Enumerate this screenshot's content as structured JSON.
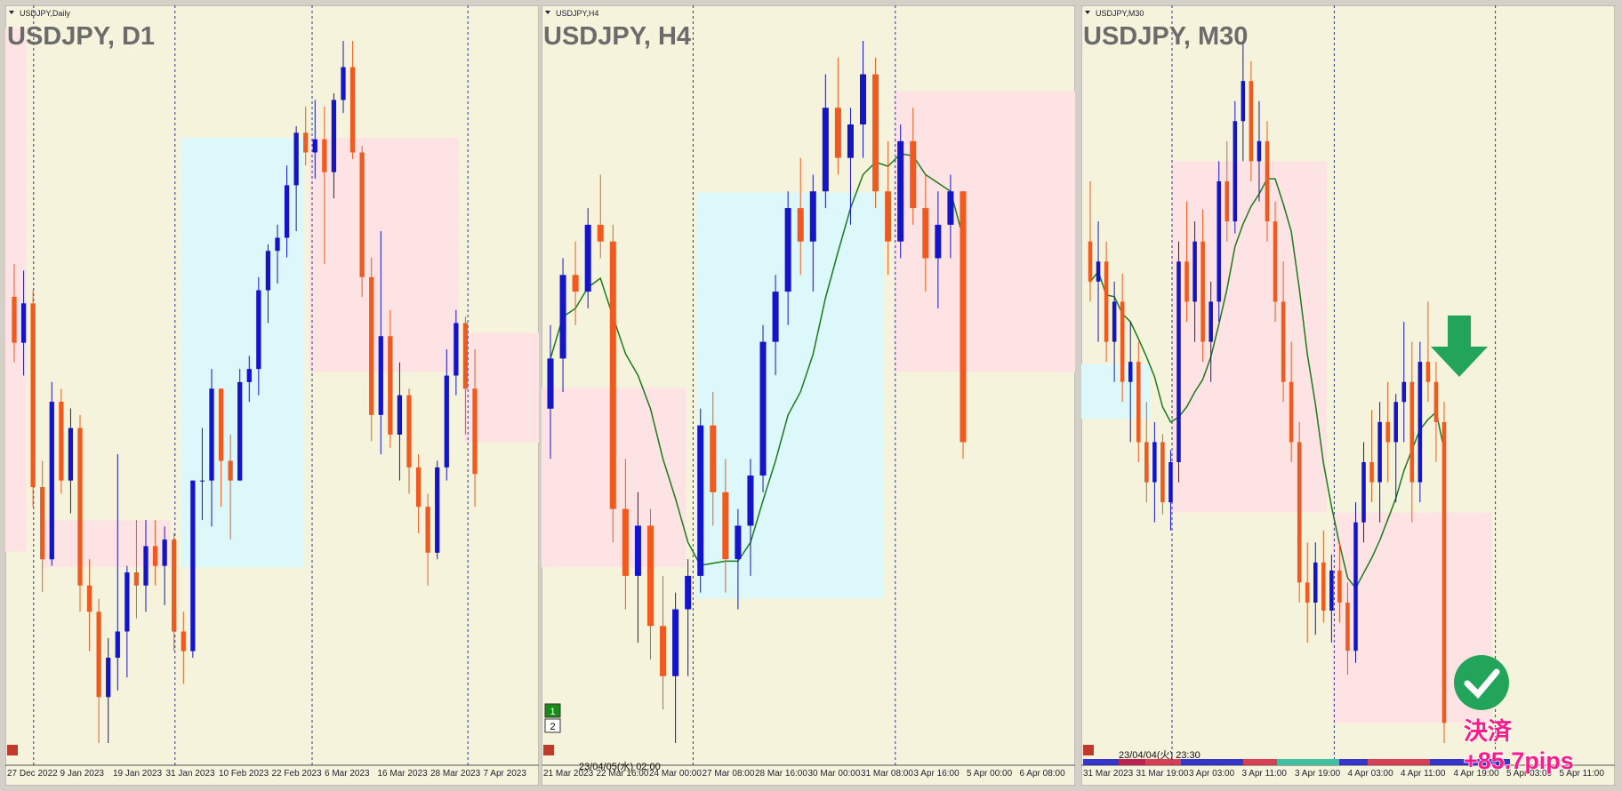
{
  "chart_data": [
    {
      "type": "candlestick",
      "header": "USDJPY,Daily",
      "title": "USDJPY, D1",
      "up_color": "#1414c8",
      "down_color": "#f05a1e",
      "moving_average": false,
      "x_labels": [
        "27 Dec 2022",
        "9 Jan 2023",
        "19 Jan 2023",
        "31 Jan 2023",
        "10 Feb 2023",
        "22 Feb 2023",
        "6 Mar 2023",
        "16 Mar 2023",
        "28 Mar 2023",
        "7 Apr 2023"
      ],
      "candles": [
        [
          134.0,
          134.5,
          133.0,
          133.3
        ],
        [
          133.3,
          134.4,
          132.8,
          133.9
        ],
        [
          133.9,
          134.1,
          130.8,
          131.1
        ],
        [
          131.1,
          131.5,
          129.5,
          130.0
        ],
        [
          130.0,
          132.7,
          129.9,
          132.4
        ],
        [
          132.4,
          132.6,
          131.0,
          131.2
        ],
        [
          131.2,
          132.3,
          130.7,
          132.0
        ],
        [
          132.0,
          132.2,
          129.2,
          129.6
        ],
        [
          129.6,
          130.0,
          128.6,
          129.2
        ],
        [
          129.2,
          129.4,
          127.2,
          127.9
        ],
        [
          127.9,
          128.8,
          127.2,
          128.5
        ],
        [
          128.5,
          131.6,
          128.0,
          128.9
        ],
        [
          128.9,
          129.9,
          128.2,
          129.8
        ],
        [
          129.8,
          130.6,
          129.1,
          129.6
        ],
        [
          129.6,
          130.6,
          129.2,
          130.2
        ],
        [
          130.2,
          130.6,
          129.6,
          129.9
        ],
        [
          129.9,
          130.5,
          129.3,
          130.3
        ],
        [
          130.3,
          130.4,
          128.6,
          128.9
        ],
        [
          128.9,
          129.2,
          128.1,
          128.6
        ],
        [
          128.6,
          131.2,
          128.5,
          131.2
        ],
        [
          131.2,
          132.0,
          130.6,
          131.2
        ],
        [
          131.2,
          132.9,
          130.5,
          132.6
        ],
        [
          132.6,
          132.6,
          130.8,
          131.5
        ],
        [
          131.5,
          131.9,
          130.3,
          131.2
        ],
        [
          131.2,
          132.9,
          131.2,
          132.7
        ],
        [
          132.7,
          133.1,
          132.4,
          132.9
        ],
        [
          132.9,
          134.3,
          132.5,
          134.1
        ],
        [
          134.1,
          134.8,
          133.6,
          134.7
        ],
        [
          134.7,
          135.1,
          134.2,
          134.9
        ],
        [
          134.9,
          136.0,
          134.6,
          135.7
        ],
        [
          135.7,
          136.6,
          135.0,
          136.5
        ],
        [
          136.5,
          136.9,
          136.0,
          136.2
        ],
        [
          136.2,
          137.0,
          135.8,
          136.4
        ],
        [
          136.4,
          136.9,
          134.5,
          135.9
        ],
        [
          135.9,
          137.1,
          135.5,
          137.0
        ],
        [
          137.0,
          137.9,
          136.8,
          137.5
        ],
        [
          137.5,
          137.9,
          136.1,
          136.2
        ],
        [
          136.2,
          136.3,
          134.0,
          134.3
        ],
        [
          134.3,
          134.6,
          131.8,
          132.2
        ],
        [
          132.2,
          135.0,
          131.6,
          133.4
        ],
        [
          133.4,
          133.8,
          131.7,
          131.9
        ],
        [
          131.9,
          133.0,
          131.2,
          132.5
        ],
        [
          132.5,
          132.6,
          131.0,
          131.4
        ],
        [
          131.4,
          131.6,
          130.4,
          130.8
        ],
        [
          130.8,
          131.0,
          129.6,
          130.1
        ],
        [
          130.1,
          131.5,
          130.0,
          131.4
        ],
        [
          131.4,
          133.2,
          131.2,
          132.8
        ],
        [
          132.8,
          133.8,
          132.5,
          133.6
        ],
        [
          133.6,
          133.7,
          131.9,
          132.6
        ],
        [
          132.6,
          133.2,
          130.8,
          131.3
        ]
      ]
    },
    {
      "type": "candlestick",
      "header": "USDJPY,H4",
      "title": "USDJPY, H4",
      "up_color": "#1414c8",
      "down_color": "#f05a1e",
      "moving_average": true,
      "ma_color": "#1a7a1a",
      "timestamp": "23/04/05(水) 02:00",
      "buttons": [
        "1",
        "2"
      ],
      "x_labels": [
        "21 Mar 2023",
        "22 Mar 16:00",
        "24 Mar 00:00",
        "27 Mar 08:00",
        "28 Mar 16:00",
        "30 Mar 00:00",
        "31 Mar 08:00",
        "3 Apr 16:00",
        "5 Apr 00:00",
        "6 Apr 08:00"
      ],
      "candles": [
        [
          131.6,
          132.1,
          131.3,
          131.9
        ],
        [
          131.9,
          132.5,
          131.7,
          132.4
        ],
        [
          132.4,
          132.6,
          132.1,
          132.3
        ],
        [
          132.3,
          132.8,
          132.2,
          132.7
        ],
        [
          132.7,
          133.0,
          132.5,
          132.6
        ],
        [
          132.6,
          132.7,
          130.8,
          131.0
        ],
        [
          131.0,
          131.3,
          130.4,
          130.6
        ],
        [
          130.6,
          131.1,
          130.2,
          130.9
        ],
        [
          130.9,
          131.0,
          130.1,
          130.3
        ],
        [
          130.3,
          130.6,
          129.8,
          130.0
        ],
        [
          130.0,
          130.5,
          129.6,
          130.4
        ],
        [
          130.4,
          130.7,
          130.0,
          130.6
        ],
        [
          130.6,
          131.6,
          130.5,
          131.5
        ],
        [
          131.5,
          131.7,
          130.9,
          131.1
        ],
        [
          131.1,
          131.3,
          130.5,
          130.7
        ],
        [
          130.7,
          131.0,
          130.4,
          130.9
        ],
        [
          130.9,
          131.3,
          130.6,
          131.2
        ],
        [
          131.2,
          132.1,
          131.1,
          132.0
        ],
        [
          132.0,
          132.4,
          131.8,
          132.3
        ],
        [
          132.3,
          132.9,
          132.1,
          132.8
        ],
        [
          132.8,
          133.1,
          132.4,
          132.6
        ],
        [
          132.6,
          133.0,
          132.3,
          132.9
        ],
        [
          132.9,
          133.6,
          132.8,
          133.4
        ],
        [
          133.4,
          133.7,
          133.0,
          133.1
        ],
        [
          133.1,
          133.4,
          132.7,
          133.3
        ],
        [
          133.3,
          133.8,
          133.1,
          133.6
        ],
        [
          133.6,
          133.7,
          132.8,
          132.9
        ],
        [
          132.9,
          133.2,
          132.4,
          132.6
        ],
        [
          132.6,
          133.3,
          132.5,
          133.2
        ],
        [
          133.2,
          133.4,
          132.7,
          132.8
        ],
        [
          132.8,
          133.0,
          132.3,
          132.5
        ],
        [
          132.5,
          132.9,
          132.2,
          132.7
        ],
        [
          132.7,
          133.0,
          132.5,
          132.9
        ],
        [
          132.9,
          132.9,
          131.3,
          131.4
        ]
      ]
    },
    {
      "type": "candlestick",
      "header": "USDJPY,M30",
      "title": "USDJPY, M30",
      "up_color": "#1414c8",
      "down_color": "#f05a1e",
      "moving_average": true,
      "ma_color": "#1a7a1a",
      "timestamp": "23/04/04(火) 23:30",
      "annotations": [
        "決済",
        "+85.7pips"
      ],
      "x_labels": [
        "31 Mar 2023",
        "31 Mar 19:00",
        "3 Apr 03:00",
        "3 Apr 11:00",
        "3 Apr 19:00",
        "4 Apr 03:00",
        "4 Apr 11:00",
        "4 Apr 19:00",
        "5 Apr 03:00",
        "5 Apr 11:00"
      ],
      "candles": [
        [
          132.7,
          132.85,
          132.55,
          132.6
        ],
        [
          132.6,
          132.75,
          132.45,
          132.65
        ],
        [
          132.65,
          132.7,
          132.4,
          132.45
        ],
        [
          132.45,
          132.6,
          132.35,
          132.55
        ],
        [
          132.55,
          132.62,
          132.3,
          132.35
        ],
        [
          132.35,
          132.5,
          132.2,
          132.4
        ],
        [
          132.4,
          132.45,
          132.15,
          132.2
        ],
        [
          132.2,
          132.3,
          132.05,
          132.1
        ],
        [
          132.1,
          132.25,
          132.0,
          132.2
        ],
        [
          132.2,
          132.22,
          132.02,
          132.05
        ],
        [
          132.05,
          132.18,
          131.98,
          132.15
        ],
        [
          132.15,
          132.7,
          132.1,
          132.65
        ],
        [
          132.65,
          132.8,
          132.5,
          132.55
        ],
        [
          132.55,
          132.75,
          132.45,
          132.7
        ],
        [
          132.7,
          132.78,
          132.4,
          132.45
        ],
        [
          132.45,
          132.6,
          132.35,
          132.55
        ],
        [
          132.55,
          132.9,
          132.5,
          132.85
        ],
        [
          132.85,
          132.95,
          132.7,
          132.75
        ],
        [
          132.75,
          133.05,
          132.72,
          133.0
        ],
        [
          133.0,
          133.2,
          132.9,
          133.1
        ],
        [
          133.1,
          133.15,
          132.85,
          132.9
        ],
        [
          132.9,
          133.05,
          132.8,
          132.95
        ],
        [
          132.95,
          133.0,
          132.7,
          132.75
        ],
        [
          132.75,
          132.8,
          132.5,
          132.55
        ],
        [
          132.55,
          132.65,
          132.3,
          132.35
        ],
        [
          132.35,
          132.45,
          132.15,
          132.2
        ],
        [
          132.2,
          132.25,
          131.8,
          131.85
        ],
        [
          131.85,
          131.95,
          131.7,
          131.8
        ],
        [
          131.8,
          131.95,
          131.72,
          131.9
        ],
        [
          131.9,
          131.98,
          131.75,
          131.78
        ],
        [
          131.78,
          131.92,
          131.7,
          131.88
        ],
        [
          131.88,
          131.95,
          131.75,
          131.8
        ],
        [
          131.8,
          131.85,
          131.62,
          131.68
        ],
        [
          131.68,
          132.05,
          131.65,
          132.0
        ],
        [
          132.0,
          132.2,
          131.95,
          132.15
        ],
        [
          132.15,
          132.28,
          132.05,
          132.1
        ],
        [
          132.1,
          132.3,
          132.0,
          132.25
        ],
        [
          132.25,
          132.35,
          132.1,
          132.2
        ],
        [
          132.2,
          132.32,
          132.05,
          132.3
        ],
        [
          132.3,
          132.5,
          132.2,
          132.35
        ],
        [
          132.35,
          132.45,
          132.0,
          132.1
        ],
        [
          132.1,
          132.45,
          132.05,
          132.4
        ],
        [
          132.4,
          132.55,
          132.3,
          132.35
        ],
        [
          132.35,
          132.4,
          132.15,
          132.25
        ],
        [
          132.25,
          132.3,
          131.45,
          131.5
        ]
      ]
    }
  ]
}
